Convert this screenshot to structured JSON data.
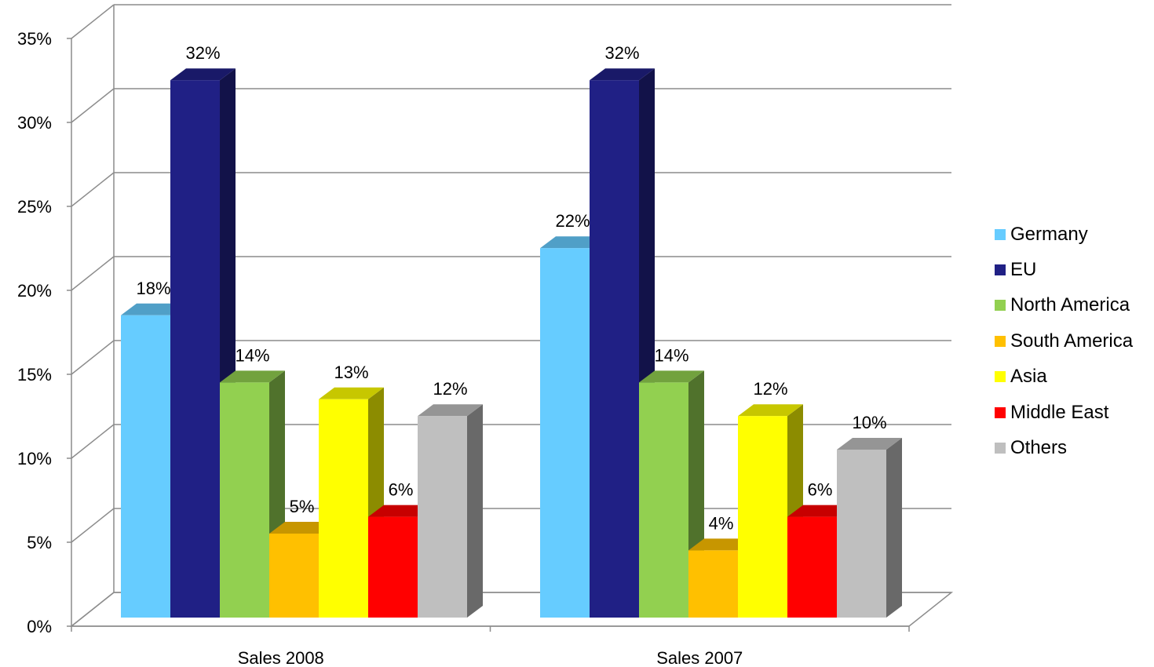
{
  "chart_data": {
    "type": "bar",
    "categories": [
      "Sales 2008",
      "Sales 2007"
    ],
    "series": [
      {
        "name": "Germany",
        "values": [
          18,
          22
        ],
        "labels": [
          "18%",
          "22%"
        ],
        "color": "#66CCFF"
      },
      {
        "name": "EU",
        "values": [
          32,
          32
        ],
        "labels": [
          "32%",
          "32%"
        ],
        "color": "#202085"
      },
      {
        "name": "North America",
        "values": [
          14,
          14
        ],
        "labels": [
          "14%",
          "14%"
        ],
        "color": "#92D050"
      },
      {
        "name": "South America",
        "values": [
          5,
          4
        ],
        "labels": [
          "5%",
          "4%"
        ],
        "color": "#FFC000"
      },
      {
        "name": "Asia",
        "values": [
          13,
          12
        ],
        "labels": [
          "13%",
          "12%"
        ],
        "color": "#FFFF00"
      },
      {
        "name": "Middle East",
        "values": [
          6,
          6
        ],
        "labels": [
          "6%",
          "6%"
        ],
        "color": "#FF0000"
      },
      {
        "name": "Others",
        "values": [
          12,
          10
        ],
        "labels": [
          "12%",
          "10%"
        ],
        "color": "#BFBFBF"
      }
    ],
    "ylim": [
      0,
      35
    ],
    "yticks": [
      "0%",
      "5%",
      "10%",
      "15%",
      "20%",
      "25%",
      "30%",
      "35%"
    ],
    "title": "",
    "xlabel": "",
    "ylabel": "",
    "grid": true,
    "legend": "right",
    "style": "3d-clustered-column"
  }
}
